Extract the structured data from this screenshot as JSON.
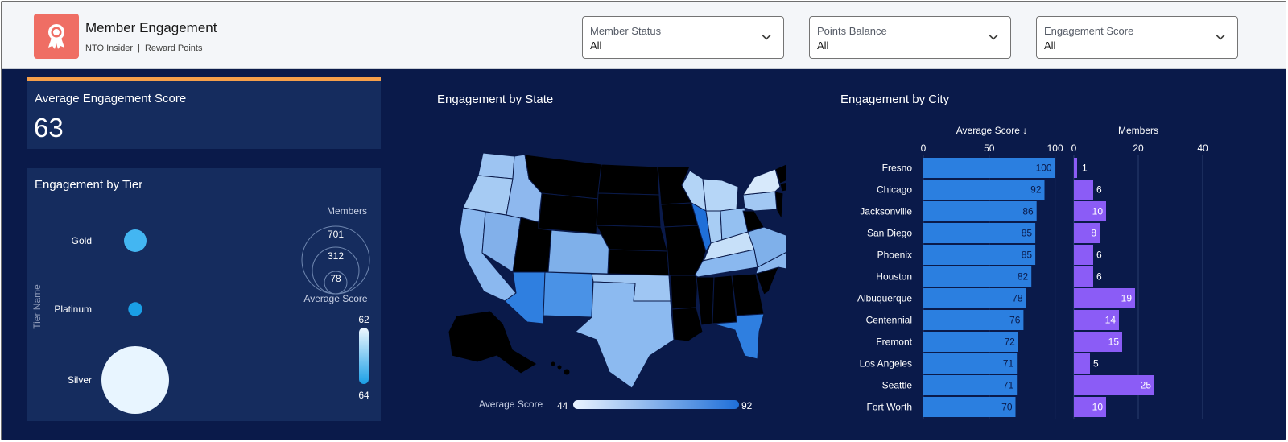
{
  "header": {
    "title": "Member Engagement",
    "subtitle_program": "NTO Insider",
    "subtitle_separator": "|",
    "subtitle_currency": "Reward Points",
    "logo_icon": "award-ribbon-icon",
    "logo_color": "#ef6e64"
  },
  "filters": [
    {
      "label": "Member Status",
      "value": "All"
    },
    {
      "label": "Points Balance",
      "value": "All"
    },
    {
      "label": "Engagement Score",
      "value": "All"
    }
  ],
  "kpi": {
    "title": "Average Engagement Score",
    "value": "63",
    "accent": "#f59f4a"
  },
  "tier_chart": {
    "title": "Engagement by Tier",
    "axis_label": "Tier Name",
    "size_legend_title": "Members",
    "size_legend_values": [
      "701",
      "312",
      "78"
    ],
    "color_legend_title": "Average Score",
    "color_legend_max": "62",
    "color_legend_min": "64"
  },
  "map_chart": {
    "title": "Engagement by State",
    "legend_title": "Average Score",
    "legend_min": "44",
    "legend_max": "92"
  },
  "city_chart": {
    "title": "Engagement by City",
    "score_header": "Average Score ↓",
    "members_header": "Members"
  },
  "chart_data": [
    {
      "type": "scatter",
      "title": "Engagement by Tier",
      "ylabel": "Tier Name",
      "categories": [
        "Gold",
        "Platinum",
        "Silver"
      ],
      "members": [
        78,
        30,
        701
      ],
      "average_score": [
        62,
        64,
        62
      ],
      "size_legend": [
        701,
        312,
        78
      ],
      "color_range": [
        62,
        64
      ]
    },
    {
      "type": "heatmap",
      "title": "Engagement by State",
      "legend": "Average Score",
      "color_range": [
        44,
        92
      ]
    },
    {
      "type": "bar",
      "title": "Engagement by City",
      "categories": [
        "Fresno",
        "Chicago",
        "Jacksonville",
        "San Diego",
        "Phoenix",
        "Houston",
        "Albuquerque",
        "Centennial",
        "Fremont",
        "Los Angeles",
        "Seattle",
        "Fort Worth"
      ],
      "series": [
        {
          "name": "Average Score ↓",
          "values": [
            100,
            92,
            86,
            85,
            85,
            82,
            78,
            76,
            72,
            71,
            71,
            70
          ],
          "xlim": [
            0,
            110
          ],
          "ticks": [
            0,
            50,
            100
          ],
          "color": "#2b7fe0"
        },
        {
          "name": "Members",
          "values": [
            1,
            6,
            10,
            8,
            6,
            6,
            19,
            14,
            15,
            5,
            25,
            10
          ],
          "xlim": [
            0,
            40
          ],
          "ticks": [
            0,
            20,
            40
          ],
          "color": "#8b5cf6"
        }
      ]
    }
  ]
}
